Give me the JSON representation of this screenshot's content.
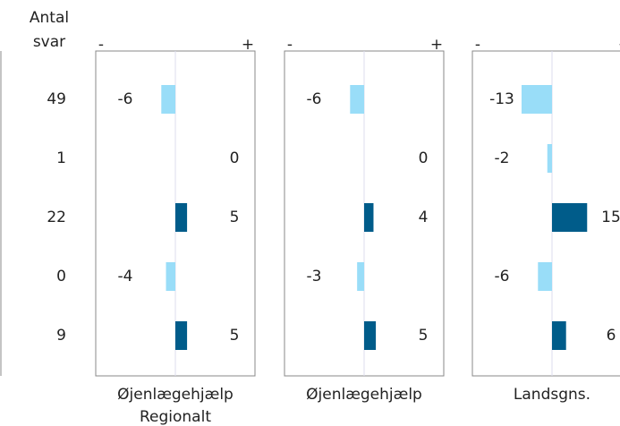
{
  "chart_data": {
    "type": "diverging-bar",
    "count_header": [
      "Antal",
      "svar"
    ],
    "counts": [
      49,
      1,
      22,
      0,
      9
    ],
    "sign_labels": [
      "-",
      "+"
    ],
    "xlim": [
      -34,
      34
    ],
    "negative_color": "#99ddf8",
    "positive_color": "#005c8a",
    "series": [
      {
        "name": [
          "Øjenlægehjælp",
          "Regionalt"
        ],
        "values": [
          -6,
          0,
          5,
          -4,
          5
        ]
      },
      {
        "name": [
          "Øjenlægehjælp"
        ],
        "values": [
          -6,
          0,
          4,
          -3,
          5
        ]
      },
      {
        "name": [
          "Landsgns."
        ],
        "values": [
          -13,
          -2,
          15,
          -6,
          6
        ]
      }
    ]
  }
}
